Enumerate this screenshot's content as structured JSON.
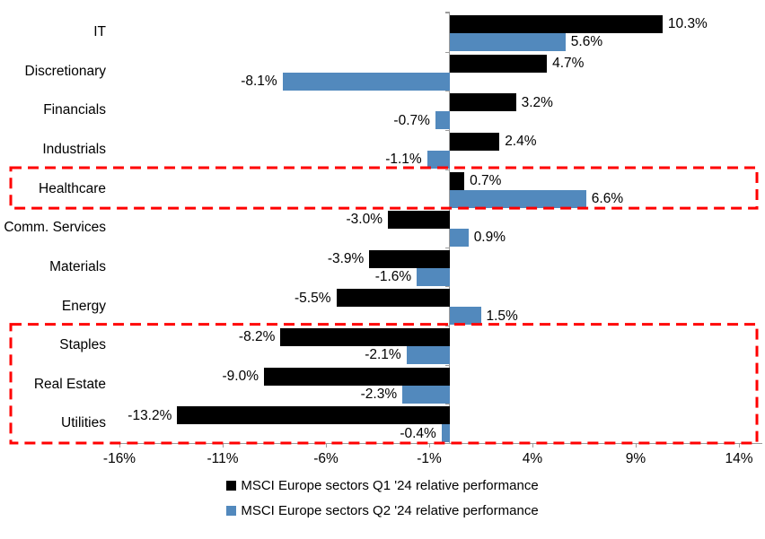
{
  "chart_data": {
    "type": "bar",
    "orientation": "horizontal",
    "title": "",
    "categories": [
      "IT",
      "Discretionary",
      "Financials",
      "Industrials",
      "Healthcare",
      "Comm. Services",
      "Materials",
      "Energy",
      "Staples",
      "Real Estate",
      "Utilities"
    ],
    "series": [
      {
        "name": "MSCI Europe sectors Q1 '24 relative performance",
        "color": "#000000",
        "values": [
          10.3,
          4.7,
          3.2,
          2.4,
          0.7,
          -3.0,
          -3.9,
          -5.5,
          -8.2,
          -9.0,
          -13.2
        ]
      },
      {
        "name": "MSCI Europe sectors Q2 '24 relative performance",
        "color": "#5289BD",
        "values": [
          5.6,
          -8.1,
          -0.7,
          -1.1,
          6.6,
          0.9,
          -1.6,
          1.5,
          -2.1,
          -2.3,
          -0.4
        ]
      }
    ],
    "value_label_format": "one-decimal-percent",
    "x_ticks": [
      {
        "value": -16,
        "label": "-16%"
      },
      {
        "value": -11,
        "label": "-11%"
      },
      {
        "value": -6,
        "label": "-6%"
      },
      {
        "value": -1,
        "label": "-1%"
      },
      {
        "value": 4,
        "label": "4%"
      },
      {
        "value": 9,
        "label": "9%"
      },
      {
        "value": 14,
        "label": "14%"
      }
    ],
    "xlim": [
      -16.5,
      15.2
    ],
    "grid": false,
    "axis_color": "#9B9B9B",
    "legend_position": "bottom",
    "highlight_boxes": [
      {
        "name": "healthcare",
        "first_category": "Healthcare",
        "last_category": "Healthcare",
        "color": "#FF0000",
        "style": "dashed"
      },
      {
        "name": "defensive-sectors",
        "first_category": "Staples",
        "last_category": "Utilities",
        "color": "#FF0000",
        "style": "dashed"
      }
    ]
  }
}
